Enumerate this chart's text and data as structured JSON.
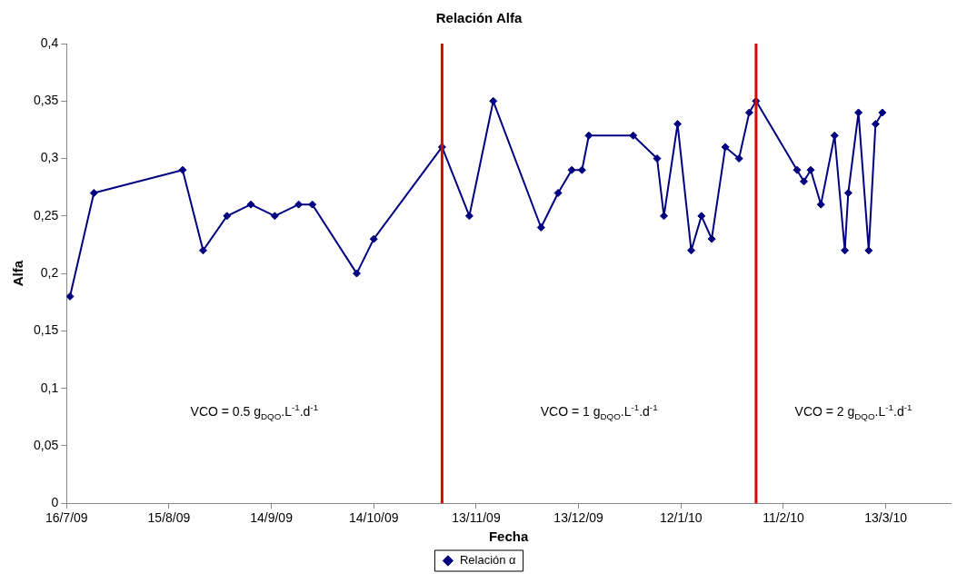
{
  "chart_data": {
    "type": "line",
    "title": "Relación Alfa",
    "xlabel": "Fecha",
    "ylabel": "Alfa",
    "x": [
      "2009-07-17",
      "2009-07-24",
      "2009-08-19",
      "2009-08-25",
      "2009-09-01",
      "2009-09-08",
      "2009-09-15",
      "2009-09-22",
      "2009-09-26",
      "2009-10-09",
      "2009-10-14",
      "2009-11-03",
      "2009-11-11",
      "2009-11-18",
      "2009-12-02",
      "2009-12-07",
      "2009-12-11",
      "2009-12-14",
      "2009-12-16",
      "2009-12-29",
      "2010-01-05",
      "2010-01-07",
      "2010-01-11",
      "2010-01-15",
      "2010-01-18",
      "2010-01-21",
      "2010-01-25",
      "2010-01-29",
      "2010-02-01",
      "2010-02-03",
      "2010-02-15",
      "2010-02-17",
      "2010-02-19",
      "2010-02-22",
      "2010-02-26",
      "2010-03-01",
      "2010-03-02",
      "2010-03-05",
      "2010-03-08",
      "2010-03-10",
      "2010-03-12"
    ],
    "series": [
      {
        "name": "Relación α",
        "color": "#000080",
        "values": [
          0.18,
          0.27,
          0.29,
          0.22,
          0.25,
          0.26,
          0.25,
          0.26,
          0.26,
          0.2,
          0.23,
          0.31,
          0.25,
          0.35,
          0.24,
          0.27,
          0.29,
          0.29,
          0.32,
          0.32,
          0.3,
          0.25,
          0.33,
          0.22,
          0.25,
          0.23,
          0.31,
          0.3,
          0.34,
          0.35,
          0.29,
          0.28,
          0.29,
          0.26,
          0.32,
          0.22,
          0.27,
          0.34,
          0.22,
          0.33,
          0.34
        ]
      }
    ],
    "xlim": [
      "2009-07-16",
      "2010-04-01"
    ],
    "xticks": [
      {
        "value": "2009-07-16",
        "label": "16/7/09"
      },
      {
        "value": "2009-08-15",
        "label": "15/8/09"
      },
      {
        "value": "2009-09-14",
        "label": "14/9/09"
      },
      {
        "value": "2009-10-14",
        "label": "14/10/09"
      },
      {
        "value": "2009-11-13",
        "label": "13/11/09"
      },
      {
        "value": "2009-12-13",
        "label": "13/12/09"
      },
      {
        "value": "2010-01-12",
        "label": "12/1/10"
      },
      {
        "value": "2010-02-11",
        "label": "11/2/10"
      },
      {
        "value": "2010-03-13",
        "label": "13/3/10"
      }
    ],
    "ylim": [
      0,
      0.4
    ],
    "yticks": [
      {
        "value": 0,
        "label": "0"
      },
      {
        "value": 0.05,
        "label": "0,05"
      },
      {
        "value": 0.1,
        "label": "0,1"
      },
      {
        "value": 0.15,
        "label": "0,15"
      },
      {
        "value": 0.2,
        "label": "0,2"
      },
      {
        "value": 0.25,
        "label": "0,25"
      },
      {
        "value": 0.3,
        "label": "0,3"
      },
      {
        "value": 0.35,
        "label": "0,35"
      },
      {
        "value": 0.4,
        "label": "0,4"
      }
    ],
    "ref_lines": [
      {
        "axis": "x",
        "value": "2009-11-03",
        "color": "#e00000"
      },
      {
        "axis": "x",
        "value": "2010-02-03",
        "color": "#e00000"
      }
    ],
    "annotations": [
      "VCO = 0.5 g$_{DQO}$.L$^{-1}$.d$^{-1}$",
      "VCO = 1 g$_{DQO}$.L$^{-1}$.d$^{-1}$",
      "VCO = 2 g$_{DQO}$.L$^{-1}$.d$^{-1}$"
    ],
    "marker": "diamond",
    "grid": false,
    "legend": "bottom"
  }
}
